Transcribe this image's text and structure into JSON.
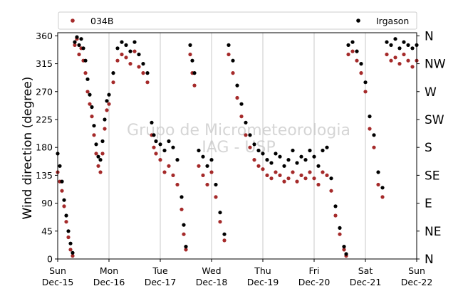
{
  "chart_data": {
    "type": "scatter",
    "title": "",
    "ylabel": "Wind direction (degree)",
    "xlabel": "",
    "ylim": [
      0,
      365
    ],
    "xlim": [
      "2019-12-15",
      "2019-12-22"
    ],
    "grid": "vertical lines at day ticks",
    "legend_placement": "top, above plot",
    "watermark": [
      "Grupo de Micrometeorologia",
      "IAG - USP"
    ],
    "y_ticks": [
      0,
      45,
      90,
      135,
      180,
      225,
      270,
      315,
      360
    ],
    "compass_labels": [
      "N",
      "NE",
      "E",
      "SE",
      "S",
      "SW",
      "W",
      "NW",
      "N"
    ],
    "x_ticks": [
      {
        "day": "Sun",
        "date": "Dec-15"
      },
      {
        "day": "Mon",
        "date": "Dec-16"
      },
      {
        "day": "Tue",
        "date": "Dec-17"
      },
      {
        "day": "Wed",
        "date": "Dec-18"
      },
      {
        "day": "Thu",
        "date": "Dec-19"
      },
      {
        "day": "Fri",
        "date": "Dec-20"
      },
      {
        "day": "Sat",
        "date": "Dec-21"
      },
      {
        "day": "Sun",
        "date": "Dec-22"
      }
    ],
    "series": [
      {
        "name": "034B",
        "color": "#a52a2a",
        "points": [
          [
            "2019-12-15T00:00",
            140
          ],
          [
            "2019-12-15T01:00",
            125
          ],
          [
            "2019-12-15T02:00",
            110
          ],
          [
            "2019-12-15T03:00",
            85
          ],
          [
            "2019-12-15T04:00",
            60
          ],
          [
            "2019-12-15T05:00",
            35
          ],
          [
            "2019-12-15T06:00",
            15
          ],
          [
            "2019-12-15T07:00",
            5
          ],
          [
            "2019-12-15T08:00",
            345
          ],
          [
            "2019-12-15T09:00",
            355
          ],
          [
            "2019-12-15T10:00",
            330
          ],
          [
            "2019-12-15T11:00",
            340
          ],
          [
            "2019-12-15T12:00",
            320
          ],
          [
            "2019-12-15T13:00",
            300
          ],
          [
            "2019-12-15T14:00",
            270
          ],
          [
            "2019-12-15T15:00",
            250
          ],
          [
            "2019-12-15T16:00",
            230
          ],
          [
            "2019-12-15T17:00",
            200
          ],
          [
            "2019-12-15T18:00",
            170
          ],
          [
            "2019-12-15T19:00",
            150
          ],
          [
            "2019-12-15T20:00",
            140
          ],
          [
            "2019-12-15T21:00",
            170
          ],
          [
            "2019-12-15T22:00",
            210
          ],
          [
            "2019-12-15T23:00",
            240
          ],
          [
            "2019-12-16T00:00",
            250
          ],
          [
            "2019-12-16T02:00",
            285
          ],
          [
            "2019-12-16T04:00",
            320
          ],
          [
            "2019-12-16T06:00",
            330
          ],
          [
            "2019-12-16T08:00",
            325
          ],
          [
            "2019-12-16T10:00",
            315
          ],
          [
            "2019-12-16T12:00",
            335
          ],
          [
            "2019-12-16T14:00",
            310
          ],
          [
            "2019-12-16T16:00",
            300
          ],
          [
            "2019-12-16T18:00",
            285
          ],
          [
            "2019-12-16T20:00",
            200
          ],
          [
            "2019-12-16T21:00",
            180
          ],
          [
            "2019-12-16T22:00",
            170
          ],
          [
            "2019-12-17T00:00",
            160
          ],
          [
            "2019-12-17T02:00",
            140
          ],
          [
            "2019-12-17T04:00",
            150
          ],
          [
            "2019-12-17T06:00",
            135
          ],
          [
            "2019-12-17T08:00",
            120
          ],
          [
            "2019-12-17T10:00",
            80
          ],
          [
            "2019-12-17T11:00",
            40
          ],
          [
            "2019-12-17T12:00",
            15
          ],
          [
            "2019-12-17T14:00",
            330
          ],
          [
            "2019-12-17T15:00",
            300
          ],
          [
            "2019-12-17T16:00",
            280
          ],
          [
            "2019-12-17T18:00",
            150
          ],
          [
            "2019-12-17T20:00",
            135
          ],
          [
            "2019-12-17T22:00",
            120
          ],
          [
            "2019-12-18T00:00",
            140
          ],
          [
            "2019-12-18T02:00",
            100
          ],
          [
            "2019-12-18T04:00",
            60
          ],
          [
            "2019-12-18T06:00",
            30
          ],
          [
            "2019-12-18T08:00",
            330
          ],
          [
            "2019-12-18T10:00",
            300
          ],
          [
            "2019-12-18T12:00",
            260
          ],
          [
            "2019-12-18T14:00",
            230
          ],
          [
            "2019-12-18T16:00",
            200
          ],
          [
            "2019-12-18T18:00",
            180
          ],
          [
            "2019-12-18T20:00",
            160
          ],
          [
            "2019-12-18T22:00",
            150
          ],
          [
            "2019-12-19T00:00",
            145
          ],
          [
            "2019-12-19T02:00",
            135
          ],
          [
            "2019-12-19T04:00",
            130
          ],
          [
            "2019-12-19T06:00",
            140
          ],
          [
            "2019-12-19T08:00",
            135
          ],
          [
            "2019-12-19T10:00",
            125
          ],
          [
            "2019-12-19T12:00",
            130
          ],
          [
            "2019-12-19T14:00",
            140
          ],
          [
            "2019-12-19T16:00",
            125
          ],
          [
            "2019-12-19T18:00",
            135
          ],
          [
            "2019-12-19T20:00",
            130
          ],
          [
            "2019-12-19T22:00",
            140
          ],
          [
            "2019-12-20T00:00",
            130
          ],
          [
            "2019-12-20T02:00",
            120
          ],
          [
            "2019-12-20T04:00",
            140
          ],
          [
            "2019-12-20T06:00",
            135
          ],
          [
            "2019-12-20T08:00",
            110
          ],
          [
            "2019-12-20T10:00",
            70
          ],
          [
            "2019-12-20T12:00",
            40
          ],
          [
            "2019-12-20T14:00",
            15
          ],
          [
            "2019-12-20T15:00",
            5
          ],
          [
            "2019-12-20T16:00",
            330
          ],
          [
            "2019-12-20T18:00",
            335
          ],
          [
            "2019-12-20T20:00",
            320
          ],
          [
            "2019-12-20T22:00",
            300
          ],
          [
            "2019-12-21T00:00",
            270
          ],
          [
            "2019-12-21T02:00",
            210
          ],
          [
            "2019-12-21T04:00",
            180
          ],
          [
            "2019-12-21T06:00",
            120
          ],
          [
            "2019-12-21T08:00",
            100
          ],
          [
            "2019-12-21T10:00",
            330
          ],
          [
            "2019-12-21T12:00",
            320
          ],
          [
            "2019-12-21T14:00",
            325
          ],
          [
            "2019-12-21T16:00",
            315
          ],
          [
            "2019-12-21T18:00",
            330
          ],
          [
            "2019-12-21T20:00",
            320
          ],
          [
            "2019-12-21T22:00",
            310
          ],
          [
            "2019-12-22T00:00",
            320
          ]
        ]
      },
      {
        "name": "Irgason",
        "color": "#000000",
        "points": [
          [
            "2019-12-15T00:00",
            170
          ],
          [
            "2019-12-15T01:00",
            150
          ],
          [
            "2019-12-15T02:00",
            125
          ],
          [
            "2019-12-15T03:00",
            95
          ],
          [
            "2019-12-15T04:00",
            70
          ],
          [
            "2019-12-15T05:00",
            45
          ],
          [
            "2019-12-15T06:00",
            25
          ],
          [
            "2019-12-15T07:00",
            10
          ],
          [
            "2019-12-15T08:00",
            350
          ],
          [
            "2019-12-15T09:00",
            358
          ],
          [
            "2019-12-15T10:00",
            345
          ],
          [
            "2019-12-15T11:00",
            355
          ],
          [
            "2019-12-15T12:00",
            340
          ],
          [
            "2019-12-15T13:00",
            320
          ],
          [
            "2019-12-15T14:00",
            290
          ],
          [
            "2019-12-15T15:00",
            265
          ],
          [
            "2019-12-15T16:00",
            245
          ],
          [
            "2019-12-15T17:00",
            215
          ],
          [
            "2019-12-15T18:00",
            185
          ],
          [
            "2019-12-15T19:00",
            165
          ],
          [
            "2019-12-15T20:00",
            160
          ],
          [
            "2019-12-15T21:00",
            190
          ],
          [
            "2019-12-15T22:00",
            225
          ],
          [
            "2019-12-15T23:00",
            255
          ],
          [
            "2019-12-16T00:00",
            265
          ],
          [
            "2019-12-16T02:00",
            300
          ],
          [
            "2019-12-16T04:00",
            340
          ],
          [
            "2019-12-16T06:00",
            350
          ],
          [
            "2019-12-16T08:00",
            345
          ],
          [
            "2019-12-16T10:00",
            335
          ],
          [
            "2019-12-16T12:00",
            350
          ],
          [
            "2019-12-16T14:00",
            330
          ],
          [
            "2019-12-16T16:00",
            315
          ],
          [
            "2019-12-16T18:00",
            300
          ],
          [
            "2019-12-16T20:00",
            220
          ],
          [
            "2019-12-16T21:00",
            200
          ],
          [
            "2019-12-16T22:00",
            190
          ],
          [
            "2019-12-17T00:00",
            185
          ],
          [
            "2019-12-17T02:00",
            175
          ],
          [
            "2019-12-17T04:00",
            190
          ],
          [
            "2019-12-17T06:00",
            180
          ],
          [
            "2019-12-17T08:00",
            160
          ],
          [
            "2019-12-17T10:00",
            100
          ],
          [
            "2019-12-17T11:00",
            55
          ],
          [
            "2019-12-17T12:00",
            20
          ],
          [
            "2019-12-17T14:00",
            345
          ],
          [
            "2019-12-17T15:00",
            320
          ],
          [
            "2019-12-17T16:00",
            300
          ],
          [
            "2019-12-17T18:00",
            175
          ],
          [
            "2019-12-17T20:00",
            165
          ],
          [
            "2019-12-17T22:00",
            150
          ],
          [
            "2019-12-18T00:00",
            160
          ],
          [
            "2019-12-18T02:00",
            120
          ],
          [
            "2019-12-18T04:00",
            75
          ],
          [
            "2019-12-18T06:00",
            40
          ],
          [
            "2019-12-18T08:00",
            345
          ],
          [
            "2019-12-18T10:00",
            320
          ],
          [
            "2019-12-18T12:00",
            280
          ],
          [
            "2019-12-18T14:00",
            250
          ],
          [
            "2019-12-18T16:00",
            220
          ],
          [
            "2019-12-18T18:00",
            200
          ],
          [
            "2019-12-18T20:00",
            185
          ],
          [
            "2019-12-18T22:00",
            175
          ],
          [
            "2019-12-19T00:00",
            170
          ],
          [
            "2019-12-19T02:00",
            160
          ],
          [
            "2019-12-19T04:00",
            155
          ],
          [
            "2019-12-19T06:00",
            170
          ],
          [
            "2019-12-19T08:00",
            165
          ],
          [
            "2019-12-19T10:00",
            150
          ],
          [
            "2019-12-19T12:00",
            160
          ],
          [
            "2019-12-19T14:00",
            175
          ],
          [
            "2019-12-19T16:00",
            155
          ],
          [
            "2019-12-19T18:00",
            165
          ],
          [
            "2019-12-19T20:00",
            160
          ],
          [
            "2019-12-19T22:00",
            175
          ],
          [
            "2019-12-20T00:00",
            165
          ],
          [
            "2019-12-20T02:00",
            150
          ],
          [
            "2019-12-20T04:00",
            175
          ],
          [
            "2019-12-20T06:00",
            180
          ],
          [
            "2019-12-20T08:00",
            130
          ],
          [
            "2019-12-20T10:00",
            85
          ],
          [
            "2019-12-20T12:00",
            50
          ],
          [
            "2019-12-20T14:00",
            20
          ],
          [
            "2019-12-20T15:00",
            8
          ],
          [
            "2019-12-20T16:00",
            345
          ],
          [
            "2019-12-20T18:00",
            350
          ],
          [
            "2019-12-20T20:00",
            335
          ],
          [
            "2019-12-20T22:00",
            315
          ],
          [
            "2019-12-21T00:00",
            285
          ],
          [
            "2019-12-21T02:00",
            230
          ],
          [
            "2019-12-21T04:00",
            200
          ],
          [
            "2019-12-21T06:00",
            140
          ],
          [
            "2019-12-21T08:00",
            115
          ],
          [
            "2019-12-21T10:00",
            350
          ],
          [
            "2019-12-21T12:00",
            345
          ],
          [
            "2019-12-21T14:00",
            355
          ],
          [
            "2019-12-21T16:00",
            340
          ],
          [
            "2019-12-21T18:00",
            350
          ],
          [
            "2019-12-21T20:00",
            345
          ],
          [
            "2019-12-21T22:00",
            340
          ],
          [
            "2019-12-22T00:00",
            345
          ]
        ]
      }
    ]
  }
}
